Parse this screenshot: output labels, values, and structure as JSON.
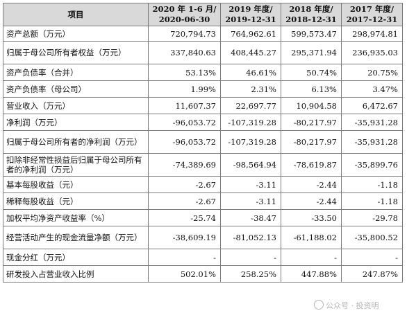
{
  "table": {
    "headers": [
      {
        "l1": "项目",
        "l2": ""
      },
      {
        "l1": "2020 年 1-6 月/",
        "l2": "2020-06-30"
      },
      {
        "l1": "2019 年度/",
        "l2": "2019-12-31"
      },
      {
        "l1": "2018 年度/",
        "l2": "2018-12-31"
      },
      {
        "l1": "2017 年度/",
        "l2": "2017-12-31"
      }
    ],
    "rows": [
      {
        "label": "资产总额（万元）",
        "values": [
          "720,794.73",
          "764,962.61",
          "599,573.47",
          "298,974.81"
        ]
      },
      {
        "label": "归属于母公司所有者权益（万元）",
        "values": [
          "337,840.63",
          "408,445.27",
          "295,371.94",
          "236,935.03"
        ]
      },
      {
        "label": "资产负债率（合并）",
        "values": [
          "53.13%",
          "46.61%",
          "50.74%",
          "20.75%"
        ]
      },
      {
        "label": "资产负债率（母公司）",
        "values": [
          "1.99%",
          "2.31%",
          "6.13%",
          "3.47%"
        ]
      },
      {
        "label": "营业收入（万元）",
        "values": [
          "11,607.37",
          "22,697.77",
          "10,904.58",
          "6,472.67"
        ]
      },
      {
        "label": "净利润（万元）",
        "values": [
          "-96,053.72",
          "-107,319.28",
          "-80,217.97",
          "-35,931.28"
        ]
      },
      {
        "label": "归属于母公司所有者的净利润（万元）",
        "values": [
          "-96,053.72",
          "-107,319.28",
          "-80,217.97",
          "-35,931.28"
        ]
      },
      {
        "label": "扣除非经常性损益后归属于母公司所有者的净利润（万元）",
        "values": [
          "-74,389.69",
          "-98,564.94",
          "-78,619.87",
          "-35,899.76"
        ]
      },
      {
        "label": "基本每股收益（元）",
        "values": [
          "-2.67",
          "-3.11",
          "-2.44",
          "-1.18"
        ]
      },
      {
        "label": "稀释每股收益（元）",
        "values": [
          "-2.67",
          "-3.11",
          "-2.44",
          "-1.18"
        ]
      },
      {
        "label": "加权平均净资产收益率（%）",
        "values": [
          "-25.74",
          "-38.47",
          "-33.50",
          "-29.78"
        ]
      },
      {
        "label": "经营活动产生的现金流量净额（万元）",
        "values": [
          "-38,609.19",
          "-81,052.13",
          "-61,188.02",
          "-35,800.52"
        ]
      },
      {
        "label": "现金分红（万元）",
        "values": [
          "-",
          "-",
          "-",
          "-"
        ]
      },
      {
        "label": "研发投入占营业收入比例",
        "values": [
          "502.01%",
          "258.25%",
          "447.88%",
          "247.87%"
        ]
      }
    ]
  },
  "watermark": {
    "text": "公众号 · 投资明",
    "icon": "wechat-icon"
  }
}
